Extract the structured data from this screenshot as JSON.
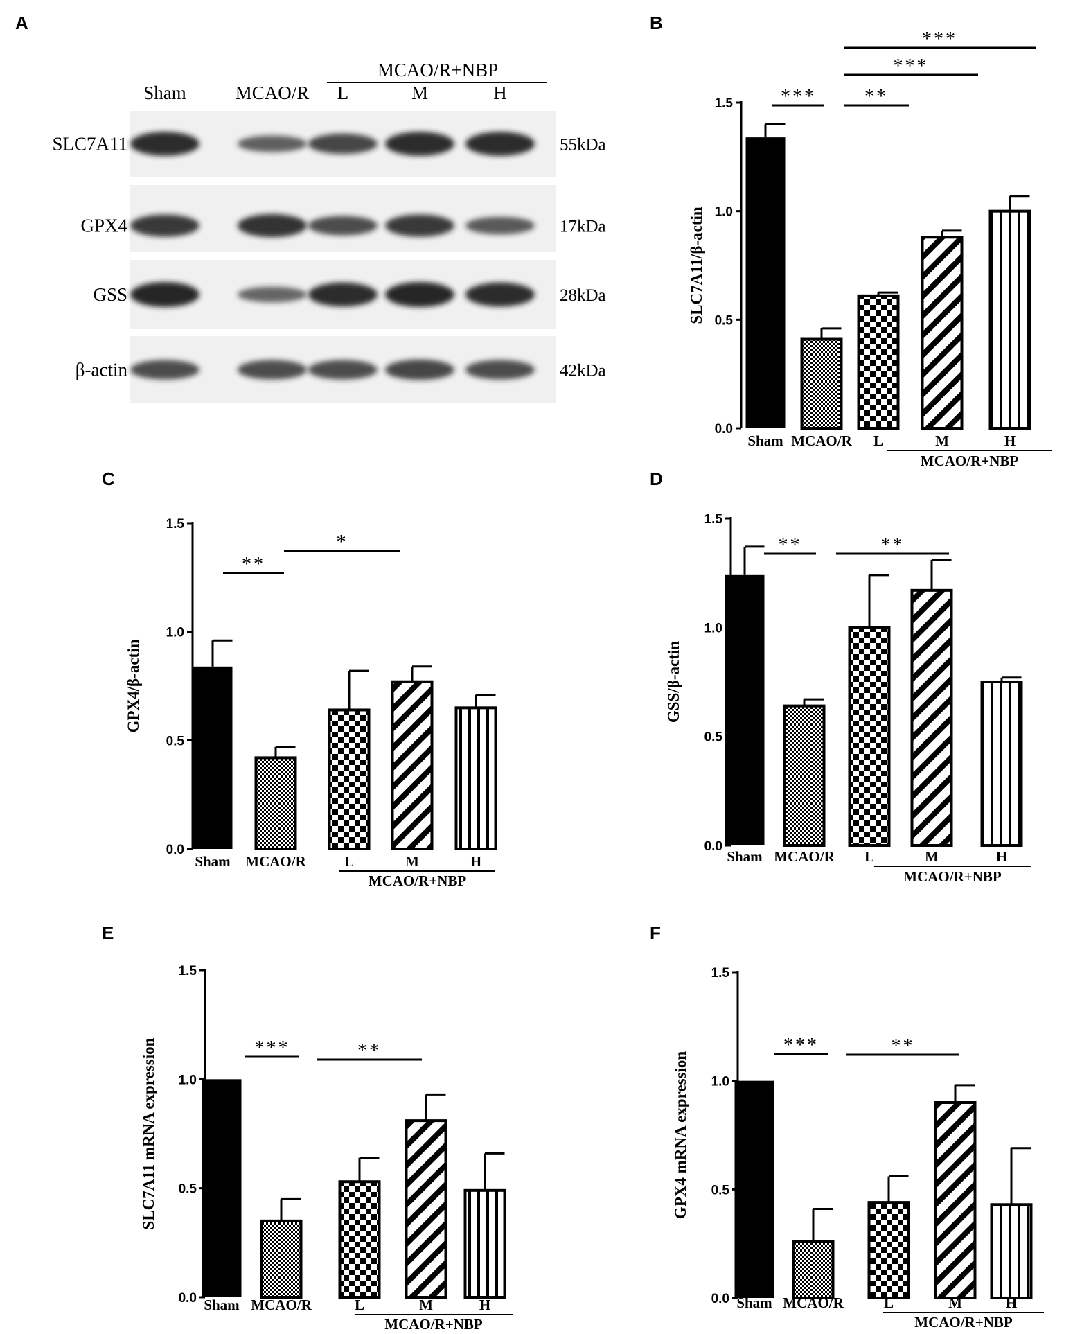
{
  "colors": {
    "ink": "#000000",
    "blot_bg": "#f0f0f0",
    "band": "#1a1a1a"
  },
  "blot": {
    "letter": "A",
    "group_header": "MCAO/R+NBP",
    "lanes": [
      "Sham",
      "MCAO/R",
      "L",
      "M",
      "H"
    ],
    "rows": [
      {
        "label": "SLC7A11",
        "kda": "55kDa",
        "intensities": [
          0.95,
          0.55,
          0.75,
          0.95,
          0.95
        ]
      },
      {
        "label": "GPX4",
        "kda": "17kDa",
        "intensities": [
          0.85,
          0.9,
          0.7,
          0.85,
          0.6
        ]
      },
      {
        "label": "GSS",
        "kda": "28kDa",
        "intensities": [
          1.0,
          0.5,
          0.95,
          1.0,
          0.95
        ]
      },
      {
        "label": "β-actin",
        "kda": "42kDa",
        "intensities": [
          0.7,
          0.7,
          0.7,
          0.75,
          0.7
        ]
      }
    ]
  },
  "chart_data": [
    {
      "panel": "B",
      "type": "bar",
      "categories": [
        "Sham",
        "MCAO/R",
        "L",
        "M",
        "H"
      ],
      "group_label": "MCAO/R+NBP",
      "values": [
        1.34,
        0.41,
        0.61,
        0.88,
        1.0
      ],
      "errors": [
        0.06,
        0.05,
        0.015,
        0.03,
        0.07
      ],
      "patterns": [
        "solid",
        "fine-check",
        "check",
        "diagonal",
        "vertical"
      ],
      "ylabel": "SLC7A11/β-actin",
      "ylim": [
        0,
        1.5
      ],
      "yticks": [
        "0.0",
        "0.5",
        "1.0",
        "1.5"
      ],
      "significance": [
        {
          "from": 0,
          "to": 1,
          "label": "***"
        },
        {
          "from": 1,
          "to": 2,
          "label": "**"
        },
        {
          "from": 1,
          "to": 3,
          "label": "***"
        },
        {
          "from": 1,
          "to": 4,
          "label": "***"
        }
      ]
    },
    {
      "panel": "C",
      "type": "bar",
      "categories": [
        "Sham",
        "MCAO/R",
        "L",
        "M",
        "H"
      ],
      "group_label": "MCAO/R+NBP",
      "values": [
        0.84,
        0.42,
        0.64,
        0.77,
        0.65
      ],
      "errors": [
        0.12,
        0.05,
        0.18,
        0.07,
        0.06
      ],
      "patterns": [
        "solid",
        "fine-check",
        "check",
        "diagonal",
        "vertical"
      ],
      "ylabel": "GPX4/β-actin",
      "ylim": [
        0,
        1.5
      ],
      "yticks": [
        "0.0",
        "0.5",
        "1.0",
        "1.5"
      ],
      "significance": [
        {
          "from": 0,
          "to": 1,
          "label": "**"
        },
        {
          "from": 1,
          "to": 3,
          "label": "*"
        }
      ]
    },
    {
      "panel": "D",
      "type": "bar",
      "categories": [
        "Sham",
        "MCAO/R",
        "L",
        "M",
        "H"
      ],
      "group_label": "MCAO/R+NBP",
      "values": [
        1.24,
        0.64,
        1.0,
        1.17,
        0.75
      ],
      "errors": [
        0.13,
        0.03,
        0.24,
        0.14,
        0.02
      ],
      "patterns": [
        "solid",
        "fine-check",
        "check",
        "diagonal",
        "vertical"
      ],
      "ylabel": "GSS/β-actin",
      "ylim": [
        0,
        1.5
      ],
      "yticks": [
        "0.0",
        "0.5",
        "1.0",
        "1.5"
      ],
      "significance": [
        {
          "from": 0,
          "to": 1,
          "label": "**"
        },
        {
          "from": 1,
          "to": 3,
          "label": "**"
        }
      ]
    },
    {
      "panel": "E",
      "type": "bar",
      "categories": [
        "Sham",
        "MCAO/R",
        "L",
        "M",
        "H"
      ],
      "group_label": "MCAO/R+NBP",
      "values": [
        1.0,
        0.35,
        0.53,
        0.81,
        0.49
      ],
      "errors": [
        0.0,
        0.1,
        0.11,
        0.12,
        0.17
      ],
      "patterns": [
        "solid",
        "fine-check",
        "check",
        "diagonal",
        "vertical"
      ],
      "ylabel": "SLC7A11 mRNA expression",
      "ylim": [
        0,
        1.5
      ],
      "yticks": [
        "0.0",
        "0.5",
        "1.0",
        "1.5"
      ],
      "significance": [
        {
          "from": 0,
          "to": 1,
          "label": "***"
        },
        {
          "from": 1,
          "to": 3,
          "label": "**"
        }
      ]
    },
    {
      "panel": "F",
      "type": "bar",
      "categories": [
        "Sham",
        "MCAO/R",
        "L",
        "M",
        "H"
      ],
      "group_label": "MCAO/R+NBP",
      "values": [
        1.0,
        0.26,
        0.44,
        0.9,
        0.43
      ],
      "errors": [
        0.0,
        0.15,
        0.12,
        0.08,
        0.26
      ],
      "patterns": [
        "solid",
        "fine-check",
        "check",
        "diagonal",
        "vertical"
      ],
      "ylabel": "GPX4 mRNA expression",
      "ylim": [
        0,
        1.5
      ],
      "yticks": [
        "0.0",
        "0.5",
        "1.0",
        "1.5"
      ],
      "significance": [
        {
          "from": 0,
          "to": 1,
          "label": "***"
        },
        {
          "from": 1,
          "to": 3,
          "label": "**"
        }
      ]
    }
  ]
}
